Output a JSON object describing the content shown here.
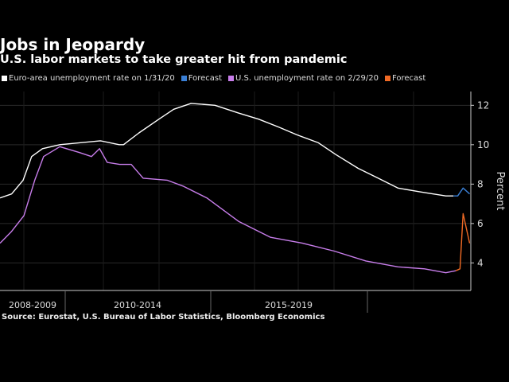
{
  "title": "Jobs in Jeopardy",
  "subtitle": "U.S. labor markets to take greater hit from pandemic",
  "source": "Source: Eurostat, U.S. Bureau of Labor Statistics, Bloomberg Economics",
  "legend": [
    {
      "label": "Euro-area unemployment rate on 1/31/20",
      "color": "#ffffff"
    },
    {
      "label": "Forecast",
      "color": "#3a7fd5"
    },
    {
      "label": "U.S. unemployment rate on 2/29/20",
      "color": "#c77dea"
    },
    {
      "label": "Forecast",
      "color": "#f06a25"
    }
  ],
  "chart_data": {
    "type": "line",
    "ylabel": "Percent",
    "ylim": [
      2.6,
      12.7
    ],
    "xlim": [
      2008.3,
      2020.5
    ],
    "y_ticks": [
      4,
      6,
      8,
      10,
      12
    ],
    "x_tick_labels": [
      "2008-2009",
      "2010-2014",
      "2015-2019"
    ],
    "grid": true,
    "series": [
      {
        "name": "Euro-area unemployment rate on 1/31/20",
        "color": "#ffffff",
        "x": [
          2008.3,
          2008.6,
          2008.9,
          2009.12,
          2009.4,
          2009.85,
          2010.36,
          2010.9,
          2011.39,
          2011.5,
          2011.9,
          2012.42,
          2012.8,
          2013.25,
          2013.87,
          2014.49,
          2015.0,
          2015.52,
          2016.0,
          2016.55,
          2017.0,
          2017.58,
          2018.1,
          2018.61,
          2019.2,
          2019.85,
          2020.05
        ],
        "y": [
          7.3,
          7.5,
          8.2,
          9.4,
          9.8,
          10.0,
          10.1,
          10.2,
          10.0,
          10.0,
          10.6,
          11.3,
          11.8,
          12.1,
          12.0,
          11.6,
          11.3,
          10.9,
          10.5,
          10.1,
          9.5,
          8.8,
          8.3,
          7.8,
          7.6,
          7.4,
          7.4
        ]
      },
      {
        "name": "Forecast",
        "color": "#3a7fd5",
        "x": [
          2020.05,
          2020.16,
          2020.3,
          2020.47
        ],
        "y": [
          7.4,
          7.4,
          7.8,
          7.5
        ]
      },
      {
        "name": "U.S. unemployment rate on 2/29/20",
        "color": "#c77dea",
        "x": [
          2008.3,
          2008.6,
          2008.92,
          2009.2,
          2009.43,
          2009.85,
          2010.36,
          2010.67,
          2010.88,
          2011.08,
          2011.4,
          2011.7,
          2012.01,
          2012.63,
          2013.04,
          2013.66,
          2014.49,
          2015.31,
          2016.14,
          2016.96,
          2017.78,
          2018.61,
          2019.3,
          2019.85,
          2020.11
        ],
        "y": [
          5.0,
          5.6,
          6.4,
          8.2,
          9.4,
          9.9,
          9.6,
          9.4,
          9.8,
          9.1,
          9.0,
          9.0,
          8.3,
          8.2,
          7.9,
          7.3,
          6.1,
          5.3,
          5.0,
          4.6,
          4.1,
          3.8,
          3.7,
          3.5,
          3.6
        ]
      },
      {
        "name": "Forecast",
        "color": "#f06a25",
        "x": [
          2020.11,
          2020.22,
          2020.3,
          2020.47
        ],
        "y": [
          3.6,
          3.7,
          6.5,
          5.0
        ]
      }
    ]
  }
}
